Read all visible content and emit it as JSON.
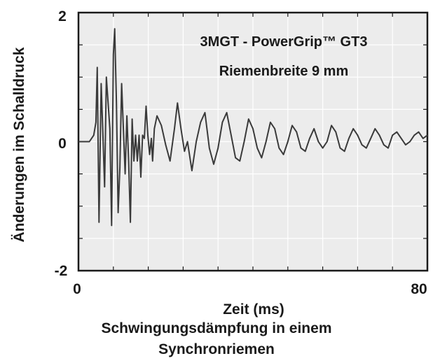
{
  "chart_data": {
    "type": "line",
    "title": "3MGT - PowerGrip™ GT3",
    "subtitle": "Riemenbreite 9 mm",
    "xlabel": "Zeit (ms)",
    "ylabel": "Änderungen im Schalldruck",
    "caption_line1": "Schwingungsdämpfung in einem",
    "caption_line2": "Synchronriemen",
    "xlim": [
      0,
      80
    ],
    "ylim": [
      -2,
      2
    ],
    "x_tick_labels": [
      "0",
      "80"
    ],
    "y_tick_labels": [
      "2",
      "0",
      "-2"
    ],
    "grid": true,
    "series": [
      {
        "x": [
          0,
          2.5,
          3.5,
          4.0,
          4.3,
          4.7,
          5.2,
          5.6,
          6.0,
          6.4,
          6.8,
          7.2,
          7.6,
          8.0,
          8.3,
          8.7,
          9.1,
          9.5,
          9.9,
          10.3,
          10.7,
          11.1,
          11.5,
          11.9,
          12.3,
          12.7,
          13.1,
          13.5,
          13.9,
          14.3,
          14.7,
          15.1,
          15.5,
          15.9,
          16.3,
          16.7,
          17.0,
          17.4,
          18.0,
          19.0,
          20.0,
          21.0,
          22.0,
          22.7,
          23.5,
          24.3,
          25.0,
          26.0,
          27.0,
          28.0,
          29.0,
          30.0,
          31.0,
          32.0,
          33.0,
          34.0,
          35.0,
          36.0,
          37.0,
          38.0,
          39.0,
          40.0,
          41.0,
          42.0,
          43.0,
          44.0,
          45.0,
          46.0,
          47.0,
          48.0,
          49.0,
          50.0,
          51.0,
          52.0,
          53.0,
          54.0,
          55.0,
          56.0,
          57.0,
          58.0,
          59.0,
          60.0,
          61.0,
          62.0,
          63.0,
          64.0,
          65.0,
          66.0,
          67.0,
          68.0,
          69.0,
          70.0,
          71.0,
          72.0,
          73.0,
          74.0,
          75.0,
          76.0,
          77.0,
          78.0,
          79.0,
          80.0
        ],
        "y": [
          0.0,
          0.0,
          0.1,
          0.3,
          1.15,
          -1.25,
          0.9,
          0.1,
          -0.7,
          1.0,
          0.6,
          0.2,
          -1.3,
          1.35,
          1.75,
          0.6,
          -1.1,
          -0.4,
          0.9,
          0.2,
          -0.5,
          0.4,
          -0.3,
          -1.25,
          0.35,
          -0.3,
          0.1,
          -0.3,
          0.1,
          -0.55,
          0.1,
          0.05,
          0.55,
          0.1,
          -0.2,
          0.05,
          -0.3,
          0.2,
          0.4,
          0.25,
          -0.05,
          -0.3,
          0.2,
          0.6,
          0.2,
          -0.15,
          0.0,
          -0.45,
          0.0,
          0.3,
          0.45,
          -0.1,
          -0.35,
          -0.1,
          0.3,
          0.45,
          0.1,
          -0.25,
          -0.3,
          0.0,
          0.35,
          0.2,
          -0.1,
          -0.25,
          0.0,
          0.3,
          0.2,
          -0.1,
          -0.2,
          0.0,
          0.25,
          0.15,
          -0.1,
          -0.15,
          0.05,
          0.2,
          0.0,
          -0.1,
          0.0,
          0.25,
          0.15,
          -0.1,
          -0.15,
          0.05,
          0.2,
          0.1,
          -0.05,
          -0.1,
          0.05,
          0.2,
          0.1,
          -0.05,
          -0.1,
          0.1,
          0.15,
          0.05,
          -0.05,
          0.0,
          0.1,
          0.15,
          0.05,
          0.1
        ]
      }
    ],
    "colors": {
      "plot_bg": "#ececec",
      "grid": "#ffffff",
      "line": "#3a3a3a",
      "axis": "#1a1a1a"
    }
  }
}
